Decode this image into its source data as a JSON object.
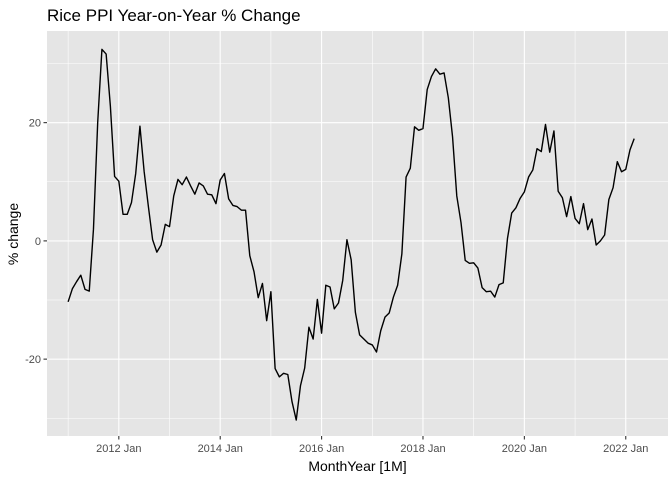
{
  "chart_data": {
    "type": "line",
    "title": "Rice PPI Year-on-Year % Change",
    "xlabel": "MonthYear [1M]",
    "ylabel": "% change",
    "x_start": "2011-01",
    "x_ticks": [
      {
        "label": "2012 Jan",
        "x": "2012-01"
      },
      {
        "label": "2014 Jan",
        "x": "2014-01"
      },
      {
        "label": "2016 Jan",
        "x": "2016-01"
      },
      {
        "label": "2018 Jan",
        "x": "2018-01"
      },
      {
        "label": "2020 Jan",
        "x": "2020-01"
      },
      {
        "label": "2022 Jan",
        "x": "2022-01"
      }
    ],
    "y_ticks": [
      -20,
      0,
      20
    ],
    "xlim": [
      "2010-08",
      "2022-11"
    ],
    "ylim": [
      -33,
      35.5
    ],
    "grid": true,
    "colors": {
      "panel": "#e5e5e5",
      "grid": "#ffffff",
      "line": "#000000"
    },
    "series": [
      {
        "values": [
          -10.3,
          -8.1,
          -6.9,
          -5.8,
          -8.2,
          -8.5,
          2.0,
          20.0,
          32.4,
          31.6,
          22.8,
          10.9,
          10.1,
          4.5,
          4.5,
          6.5,
          11.4,
          19.4,
          11.7,
          5.8,
          0.2,
          -1.9,
          -0.7,
          2.8,
          2.4,
          7.6,
          10.4,
          9.5,
          10.8,
          9.3,
          7.9,
          9.8,
          9.3,
          7.9,
          7.8,
          6.3,
          10.3,
          11.4,
          7.1,
          6.0,
          5.8,
          5.2,
          5.2,
          -2.5,
          -5.2,
          -9.6,
          -7.2,
          -13.5,
          -8.6,
          -21.6,
          -23.0,
          -22.4,
          -22.6,
          -27.2,
          -30.3,
          -24.5,
          -21.5,
          -14.6,
          -16.6,
          -9.9,
          -15.6,
          -7.5,
          -7.8,
          -11.5,
          -10.5,
          -6.7,
          0.2,
          -3.2,
          -12.1,
          -15.9,
          -16.6,
          -17.3,
          -17.6,
          -18.8,
          -15.2,
          -12.9,
          -12.2,
          -9.5,
          -7.5,
          -2.2,
          10.8,
          12.3,
          19.3,
          18.7,
          19.0,
          25.6,
          27.8,
          29.1,
          28.2,
          28.4,
          24.2,
          17.6,
          7.6,
          3.1,
          -3.3,
          -3.8,
          -3.7,
          -4.6,
          -7.9,
          -8.6,
          -8.5,
          -9.5,
          -7.4,
          -7.1,
          0.4,
          4.7,
          5.6,
          7.2,
          8.3,
          10.8,
          12.0,
          15.6,
          15.1,
          19.7,
          15.0,
          18.6,
          8.4,
          7.3,
          4.1,
          7.5,
          3.8,
          2.9,
          6.3,
          1.9,
          3.7,
          -0.7,
          0.0,
          1.0,
          7.0,
          9.0,
          13.4,
          11.7,
          12.1,
          15.4,
          17.3
        ]
      }
    ]
  }
}
